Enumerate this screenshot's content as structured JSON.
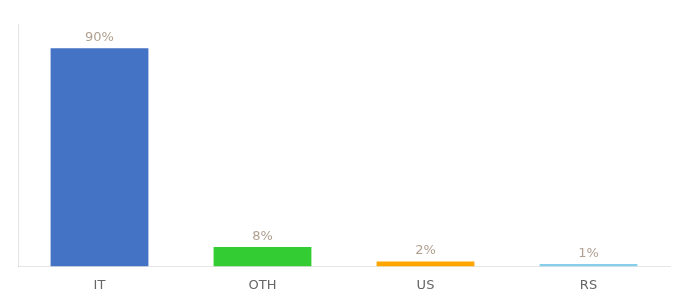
{
  "chart_data": {
    "type": "bar",
    "categories": [
      "IT",
      "OTH",
      "US",
      "RS"
    ],
    "values": [
      90,
      8,
      2,
      1
    ],
    "value_labels": [
      "90%",
      "8%",
      "2%",
      "1%"
    ],
    "colors": [
      "#4472C4",
      "#33CC33",
      "#FFA500",
      "#87CEEB"
    ],
    "ylim": [
      0,
      100
    ],
    "grid": false,
    "data_labels": true,
    "tick_labels": "x"
  }
}
